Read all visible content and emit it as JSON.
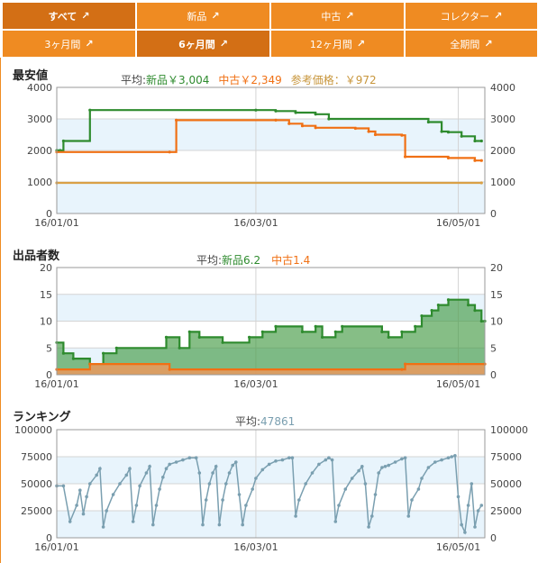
{
  "tabs_row1": [
    "すべて",
    "新品",
    "中古",
    "コレクター"
  ],
  "tabs_row2": [
    "3ヶ月間",
    "6ヶ月間",
    "12ヶ月間",
    "全期間"
  ],
  "active_row1": 0,
  "active_row2": 1,
  "colors": {
    "tab": "#ef8b22",
    "tab_active": "#d36f15",
    "new": "#2e8b2e",
    "used": "#f07014",
    "ref": "#d9a046",
    "rank": "#7a9fb0",
    "band": "#e8f4fc"
  },
  "x_ticks": [
    "16/01/01",
    "16/03/01",
    "16/05/01"
  ],
  "chart_data": [
    {
      "type": "line",
      "title": "最安値",
      "avg_label": "平均:",
      "avg_new": "新品￥3,004",
      "avg_used": "中古￥2,349",
      "avg_ref": "参考価格：￥972",
      "ylim": [
        0,
        4000
      ],
      "yticks": [
        0,
        1000,
        2000,
        3000,
        4000
      ],
      "series": [
        {
          "name": "新品",
          "step": true,
          "points": [
            [
              0,
              2000
            ],
            [
              1,
              2000
            ],
            [
              2,
              2300
            ],
            [
              10,
              3280
            ],
            [
              60,
              3280
            ],
            [
              66,
              3250
            ],
            [
              72,
              3200
            ],
            [
              78,
              3150
            ],
            [
              82,
              3000
            ],
            [
              112,
              2900
            ],
            [
              116,
              2600
            ],
            [
              118,
              2580
            ],
            [
              122,
              2450
            ],
            [
              126,
              2300
            ],
            [
              128,
              2300
            ]
          ]
        },
        {
          "name": "中古",
          "step": true,
          "points": [
            [
              0,
              1950
            ],
            [
              34,
              1950
            ],
            [
              36,
              2960
            ],
            [
              66,
              2960
            ],
            [
              70,
              2850
            ],
            [
              74,
              2780
            ],
            [
              78,
              2720
            ],
            [
              90,
              2700
            ],
            [
              94,
              2600
            ],
            [
              96,
              2500
            ],
            [
              104,
              2480
            ],
            [
              105,
              1800
            ],
            [
              118,
              1760
            ],
            [
              126,
              1680
            ],
            [
              128,
              1680
            ]
          ]
        },
        {
          "name": "参考価格",
          "step": true,
          "points": [
            [
              0,
              972
            ],
            [
              128,
              972
            ]
          ]
        }
      ]
    },
    {
      "type": "area",
      "title": "出品者数",
      "avg_label": "平均:",
      "avg_new": "新品6.2",
      "avg_used": "中古1.4",
      "ylim": [
        0,
        20
      ],
      "yticks": [
        0,
        5,
        10,
        15,
        20
      ],
      "series": [
        {
          "name": "新品",
          "step": true,
          "points": [
            [
              0,
              6
            ],
            [
              2,
              4
            ],
            [
              5,
              3
            ],
            [
              10,
              2
            ],
            [
              14,
              4
            ],
            [
              18,
              5
            ],
            [
              33,
              7
            ],
            [
              37,
              5
            ],
            [
              40,
              8
            ],
            [
              43,
              7
            ],
            [
              50,
              6
            ],
            [
              58,
              7
            ],
            [
              62,
              8
            ],
            [
              66,
              9
            ],
            [
              74,
              8
            ],
            [
              78,
              9
            ],
            [
              80,
              7
            ],
            [
              84,
              8
            ],
            [
              86,
              9
            ],
            [
              98,
              8
            ],
            [
              100,
              7
            ],
            [
              104,
              8
            ],
            [
              108,
              9
            ],
            [
              110,
              11
            ],
            [
              113,
              12
            ],
            [
              115,
              13
            ],
            [
              118,
              14
            ],
            [
              124,
              13
            ],
            [
              126,
              12
            ],
            [
              128,
              10
            ],
            [
              129,
              10
            ]
          ]
        },
        {
          "name": "中古",
          "step": true,
          "points": [
            [
              0,
              1
            ],
            [
              10,
              2
            ],
            [
              34,
              1
            ],
            [
              104,
              1
            ],
            [
              105,
              2
            ],
            [
              129,
              2
            ]
          ]
        }
      ]
    },
    {
      "type": "line",
      "title": "ランキング",
      "avg_label": "平均:",
      "avg_value": "47861",
      "ylim": [
        0,
        100000
      ],
      "yticks": [
        0,
        25000,
        50000,
        75000,
        100000
      ],
      "series": [
        {
          "name": "ランキング",
          "step": false,
          "points": [
            [
              0,
              48000
            ],
            [
              2,
              48000
            ],
            [
              4,
              15000
            ],
            [
              6,
              30000
            ],
            [
              7,
              44000
            ],
            [
              8,
              22000
            ],
            [
              9,
              38000
            ],
            [
              10,
              50000
            ],
            [
              12,
              58000
            ],
            [
              13,
              64000
            ],
            [
              14,
              10000
            ],
            [
              15,
              25000
            ],
            [
              17,
              40000
            ],
            [
              19,
              50000
            ],
            [
              21,
              58000
            ],
            [
              22,
              64000
            ],
            [
              23,
              15000
            ],
            [
              24,
              30000
            ],
            [
              25,
              48000
            ],
            [
              27,
              60000
            ],
            [
              28,
              66000
            ],
            [
              29,
              12000
            ],
            [
              30,
              30000
            ],
            [
              31,
              45000
            ],
            [
              32,
              56000
            ],
            [
              33,
              64000
            ],
            [
              34,
              68000
            ],
            [
              36,
              70000
            ],
            [
              38,
              72000
            ],
            [
              40,
              74000
            ],
            [
              42,
              74000
            ],
            [
              43,
              60000
            ],
            [
              44,
              12000
            ],
            [
              45,
              35000
            ],
            [
              46,
              50000
            ],
            [
              47,
              60000
            ],
            [
              48,
              66000
            ],
            [
              49,
              12000
            ],
            [
              50,
              35000
            ],
            [
              51,
              50000
            ],
            [
              52,
              60000
            ],
            [
              53,
              67000
            ],
            [
              54,
              70000
            ],
            [
              55,
              40000
            ],
            [
              56,
              12000
            ],
            [
              57,
              30000
            ],
            [
              59,
              45000
            ],
            [
              60,
              55000
            ],
            [
              62,
              63000
            ],
            [
              64,
              68000
            ],
            [
              66,
              71000
            ],
            [
              68,
              72000
            ],
            [
              70,
              74000
            ],
            [
              71,
              74000
            ],
            [
              72,
              20000
            ],
            [
              73,
              35000
            ],
            [
              75,
              50000
            ],
            [
              77,
              60000
            ],
            [
              79,
              68000
            ],
            [
              81,
              72000
            ],
            [
              82,
              74000
            ],
            [
              83,
              72000
            ],
            [
              84,
              15000
            ],
            [
              85,
              30000
            ],
            [
              87,
              45000
            ],
            [
              89,
              55000
            ],
            [
              91,
              62000
            ],
            [
              92,
              66000
            ],
            [
              93,
              50000
            ],
            [
              94,
              10000
            ],
            [
              95,
              20000
            ],
            [
              96,
              40000
            ],
            [
              97,
              60000
            ],
            [
              98,
              65000
            ],
            [
              99,
              66000
            ],
            [
              100,
              67000
            ],
            [
              102,
              70000
            ],
            [
              104,
              73000
            ],
            [
              105,
              74000
            ],
            [
              106,
              20000
            ],
            [
              107,
              35000
            ],
            [
              109,
              45000
            ],
            [
              110,
              55000
            ],
            [
              112,
              65000
            ],
            [
              114,
              70000
            ],
            [
              116,
              72000
            ],
            [
              118,
              74000
            ],
            [
              119,
              75000
            ],
            [
              120,
              76000
            ],
            [
              121,
              38000
            ],
            [
              122,
              12000
            ],
            [
              123,
              5000
            ],
            [
              124,
              30000
            ],
            [
              125,
              50000
            ],
            [
              126,
              10000
            ],
            [
              127,
              25000
            ],
            [
              128,
              30000
            ]
          ]
        }
      ]
    }
  ]
}
